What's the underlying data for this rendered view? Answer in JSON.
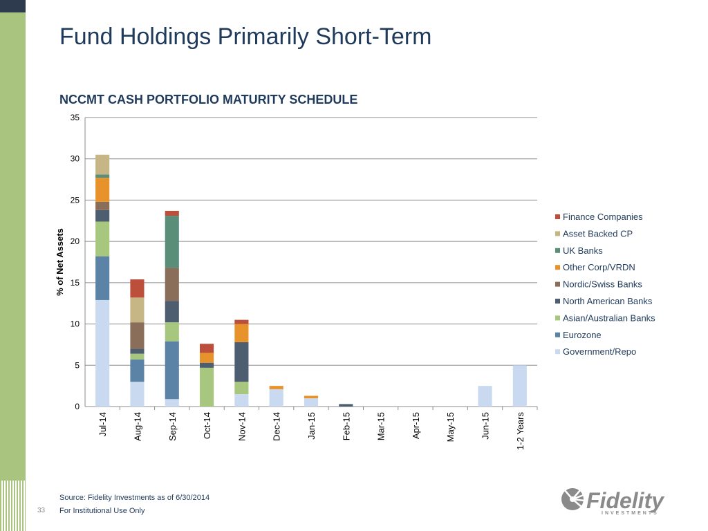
{
  "slide": {
    "title": "Fund Holdings Primarily Short-Term",
    "source_note": "Source:  Fidelity Investments as of 6/30/2014",
    "use_note": "For Institutional Use Only",
    "page_number": "33"
  },
  "logo": {
    "name": "Fidelity",
    "sub": "INVESTMENTS",
    "icon": "fidelity-logo-icon"
  },
  "colors": {
    "sidebar": "#a9c47f",
    "sidebar_dark": "#2e3b4e",
    "title_text": "#1f3a5a",
    "gridline": "#8c8c8c"
  },
  "chart_data": {
    "type": "bar",
    "stacked": true,
    "title": "NCCMT CASH PORTFOLIO MATURITY SCHEDULE",
    "xlabel": "",
    "ylabel": "% of Net Assets",
    "ylim": [
      0,
      35
    ],
    "yticks": [
      0,
      5,
      10,
      15,
      20,
      25,
      30,
      35
    ],
    "grid": true,
    "legend_position": "right",
    "categories": [
      "Jul-14",
      "Aug-14",
      "Sep-14",
      "Oct-14",
      "Nov-14",
      "Dec-14",
      "Jan-15",
      "Feb-15",
      "Mar-15",
      "Apr-15",
      "May-15",
      "Jun-15",
      "1-2 Years"
    ],
    "series": [
      {
        "name": "Government/Repo",
        "color": "#c9daf0",
        "values": [
          12.9,
          3.0,
          0.9,
          0,
          1.5,
          2.1,
          1.0,
          0,
          0,
          0,
          0,
          2.5,
          5.0
        ]
      },
      {
        "name": "Eurozone",
        "color": "#5b83a6",
        "values": [
          5.3,
          2.7,
          7.0,
          0,
          0,
          0,
          0,
          0,
          0,
          0,
          0,
          0,
          0
        ]
      },
      {
        "name": "Asian/Australian Banks",
        "color": "#a7c77f",
        "values": [
          4.2,
          0.7,
          2.3,
          4.7,
          1.5,
          0,
          0,
          0,
          0,
          0,
          0,
          0,
          0
        ]
      },
      {
        "name": "North American Banks",
        "color": "#4d5e71",
        "values": [
          1.4,
          0.6,
          2.6,
          0.6,
          4.8,
          0,
          0,
          0.3,
          0,
          0,
          0,
          0,
          0
        ]
      },
      {
        "name": "Nordic/Swiss Banks",
        "color": "#8a6e5a",
        "values": [
          1.0,
          3.2,
          4.0,
          0,
          0,
          0,
          0,
          0,
          0,
          0,
          0,
          0,
          0
        ]
      },
      {
        "name": "Other Corp/VRDN",
        "color": "#e8922c",
        "values": [
          2.9,
          0,
          0,
          1.2,
          2.2,
          0.4,
          0.3,
          0,
          0,
          0,
          0,
          0,
          0
        ]
      },
      {
        "name": "UK Banks",
        "color": "#5b8e79",
        "values": [
          0.4,
          0,
          6.3,
          0,
          0,
          0,
          0,
          0,
          0,
          0,
          0,
          0,
          0
        ]
      },
      {
        "name": "Asset Backed CP",
        "color": "#c6b685",
        "values": [
          2.4,
          3.0,
          0,
          0,
          0,
          0,
          0,
          0,
          0,
          0,
          0,
          0,
          0
        ]
      },
      {
        "name": "Finance Companies",
        "color": "#bc4e3c",
        "values": [
          0,
          2.2,
          0.6,
          1.1,
          0.5,
          0,
          0,
          0,
          0,
          0,
          0,
          0,
          0
        ]
      }
    ]
  }
}
